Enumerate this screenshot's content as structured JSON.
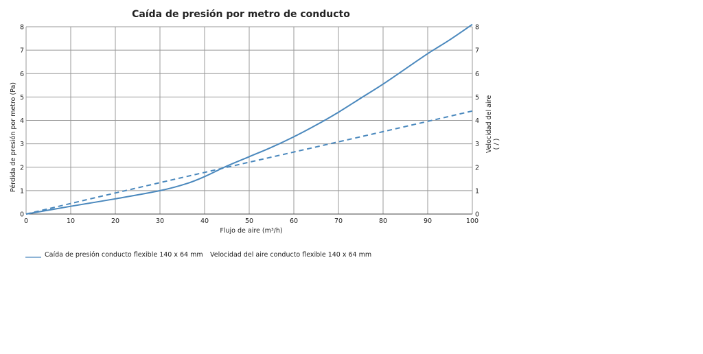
{
  "chart_data": {
    "type": "line",
    "title": "Caída de presión por metro de conducto",
    "xlabel": "Flujo de aire (m³/h)",
    "ylabel": "Pérdida de presión por metro (Pa)",
    "y2label": "Velocidad del aire",
    "y2unit": "( / )",
    "xlim": [
      0,
      100
    ],
    "ylim": [
      0,
      8
    ],
    "y2lim": [
      0,
      8
    ],
    "x_ticks": [
      "0",
      "10",
      "20",
      "30",
      "40",
      "50",
      "60",
      "70",
      "80",
      "90",
      "100"
    ],
    "y_ticks": [
      "0",
      "1",
      "2",
      "3",
      "4",
      "5",
      "6",
      "7",
      "8"
    ],
    "y2_ticks": [
      "0",
      "1",
      "2",
      "3",
      "4",
      "5",
      "6",
      "7",
      "8"
    ],
    "grid": true,
    "legend_position": "bottom-left",
    "series": [
      {
        "name": "Caída de presión conducto flexible 140 x 64 mm",
        "color": "#4a88bd",
        "style": "solid",
        "axis": "left",
        "x": [
          0,
          10,
          20,
          30,
          36,
          40,
          45,
          50,
          55,
          60,
          65,
          70,
          75,
          80,
          85,
          90,
          95,
          100
        ],
        "y": [
          0,
          0.33,
          0.65,
          1.0,
          1.3,
          1.6,
          2.05,
          2.45,
          2.85,
          3.3,
          3.8,
          4.35,
          4.95,
          5.55,
          6.2,
          6.85,
          7.45,
          8.1
        ]
      },
      {
        "name": "Velocidad del aire conducto flexible 140 x 64 mm",
        "color": "#4a88bd",
        "style": "dashed",
        "axis": "right",
        "x": [
          0,
          20,
          40,
          60,
          80,
          100
        ],
        "y": [
          0,
          0.9,
          1.78,
          2.65,
          3.52,
          4.4
        ]
      }
    ]
  }
}
